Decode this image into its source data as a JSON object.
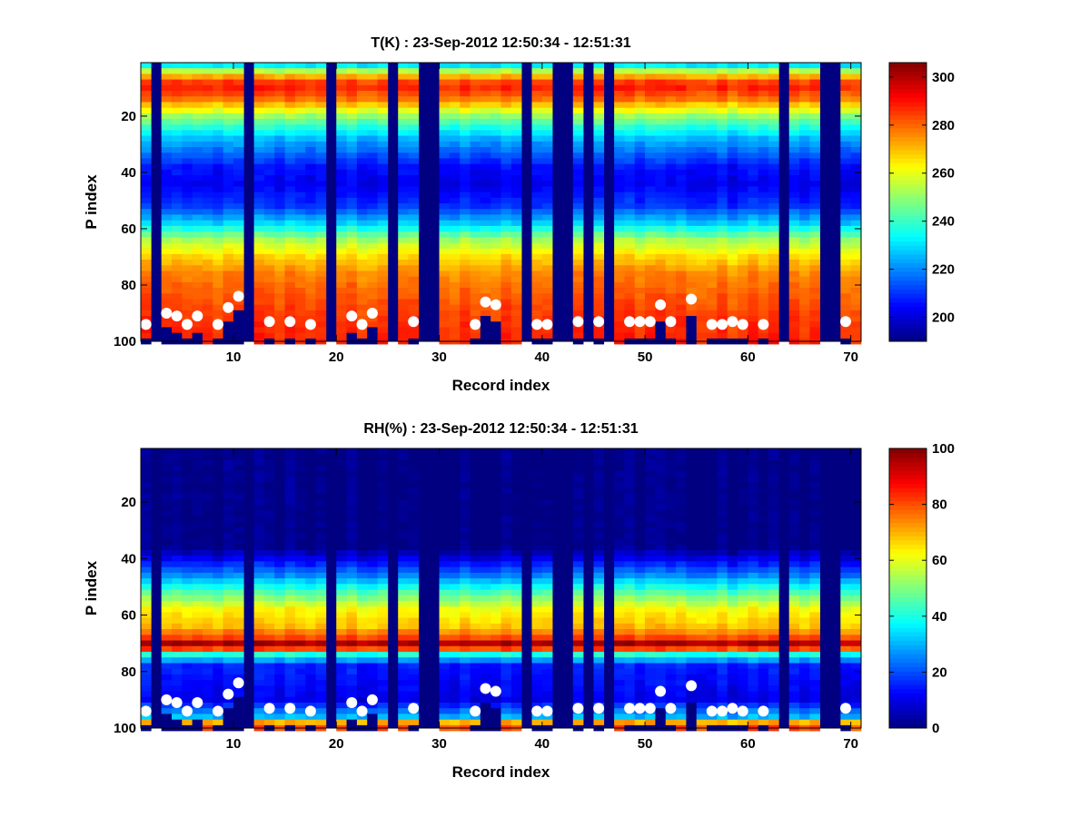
{
  "chart_data": [
    {
      "type": "heatmap",
      "title": "T(K) : 23-Sep-2012 12:50:34 - 12:51:31",
      "xlabel": "Record index",
      "ylabel": "P index",
      "xlim": [
        1,
        71
      ],
      "ylim": [
        100,
        1
      ],
      "xticks": [
        10,
        20,
        30,
        40,
        50,
        60,
        70
      ],
      "yticks": [
        20,
        40,
        60,
        80,
        100
      ],
      "colormap": "jet",
      "clim": [
        190,
        306
      ],
      "colorbar_ticks": [
        200,
        220,
        240,
        260,
        280,
        300
      ],
      "missing_records": [
        2,
        11,
        19,
        25,
        28,
        29,
        38,
        41,
        42,
        44,
        46,
        63,
        67,
        68,
        71
      ],
      "profile_levels": [
        {
          "p": 1,
          "value": 220
        },
        {
          "p": 5,
          "value": 265
        },
        {
          "p": 8,
          "value": 284
        },
        {
          "p": 10,
          "value": 287
        },
        {
          "p": 14,
          "value": 278
        },
        {
          "p": 20,
          "value": 250
        },
        {
          "p": 28,
          "value": 225
        },
        {
          "p": 38,
          "value": 206
        },
        {
          "p": 44,
          "value": 202
        },
        {
          "p": 52,
          "value": 210
        },
        {
          "p": 58,
          "value": 228
        },
        {
          "p": 64,
          "value": 252
        },
        {
          "p": 70,
          "value": 266
        },
        {
          "p": 76,
          "value": 276
        },
        {
          "p": 84,
          "value": 281
        },
        {
          "p": 92,
          "value": 285
        },
        {
          "p": 100,
          "value": 287
        }
      ],
      "surface_markers": {
        "symbol": "white-circle",
        "x": [
          1,
          3,
          4,
          5,
          6,
          8,
          9,
          10,
          13,
          15,
          17,
          21,
          22,
          23,
          27,
          33,
          34,
          35,
          39,
          40,
          43,
          45,
          48,
          49,
          50,
          51,
          52,
          54,
          56,
          57,
          58,
          59,
          61,
          69
        ],
        "p": [
          94,
          90,
          91,
          94,
          91,
          94,
          88,
          84,
          93,
          93,
          94,
          91,
          94,
          90,
          93,
          94,
          86,
          87,
          94,
          94,
          93,
          93,
          93,
          93,
          93,
          87,
          93,
          85,
          94,
          94,
          93,
          94,
          94,
          93
        ]
      }
    },
    {
      "type": "heatmap",
      "title": "RH(%) : 23-Sep-2012 12:50:34 - 12:51:31",
      "xlabel": "Record index",
      "ylabel": "P index",
      "xlim": [
        1,
        71
      ],
      "ylim": [
        100,
        1
      ],
      "xticks": [
        10,
        20,
        30,
        40,
        50,
        60,
        70
      ],
      "yticks": [
        20,
        40,
        60,
        80,
        100
      ],
      "colormap": "jet",
      "clim": [
        0,
        100
      ],
      "colorbar_ticks": [
        0,
        20,
        40,
        60,
        80,
        100
      ],
      "missing_records": [
        2,
        11,
        19,
        25,
        28,
        29,
        38,
        41,
        42,
        44,
        46,
        63,
        67,
        68,
        71
      ],
      "profile_levels": [
        {
          "p": 1,
          "value": 0
        },
        {
          "p": 36,
          "value": 0
        },
        {
          "p": 40,
          "value": 10
        },
        {
          "p": 46,
          "value": 25
        },
        {
          "p": 52,
          "value": 45
        },
        {
          "p": 58,
          "value": 62
        },
        {
          "p": 64,
          "value": 68
        },
        {
          "p": 68,
          "value": 80
        },
        {
          "p": 70,
          "value": 95
        },
        {
          "p": 72,
          "value": 80
        },
        {
          "p": 74,
          "value": 40
        },
        {
          "p": 78,
          "value": 15
        },
        {
          "p": 90,
          "value": 10
        },
        {
          "p": 96,
          "value": 30
        },
        {
          "p": 98,
          "value": 70
        },
        {
          "p": 100,
          "value": 80
        }
      ],
      "surface_markers": {
        "symbol": "white-circle",
        "x": [
          1,
          3,
          4,
          5,
          6,
          8,
          9,
          10,
          13,
          15,
          17,
          21,
          22,
          23,
          27,
          33,
          34,
          35,
          39,
          40,
          43,
          45,
          48,
          49,
          50,
          51,
          52,
          54,
          56,
          57,
          58,
          59,
          61,
          69
        ],
        "p": [
          94,
          90,
          91,
          94,
          91,
          94,
          88,
          84,
          93,
          93,
          94,
          91,
          94,
          90,
          93,
          94,
          86,
          87,
          94,
          94,
          93,
          93,
          93,
          93,
          93,
          87,
          93,
          85,
          94,
          94,
          93,
          94,
          94,
          93
        ]
      }
    }
  ]
}
